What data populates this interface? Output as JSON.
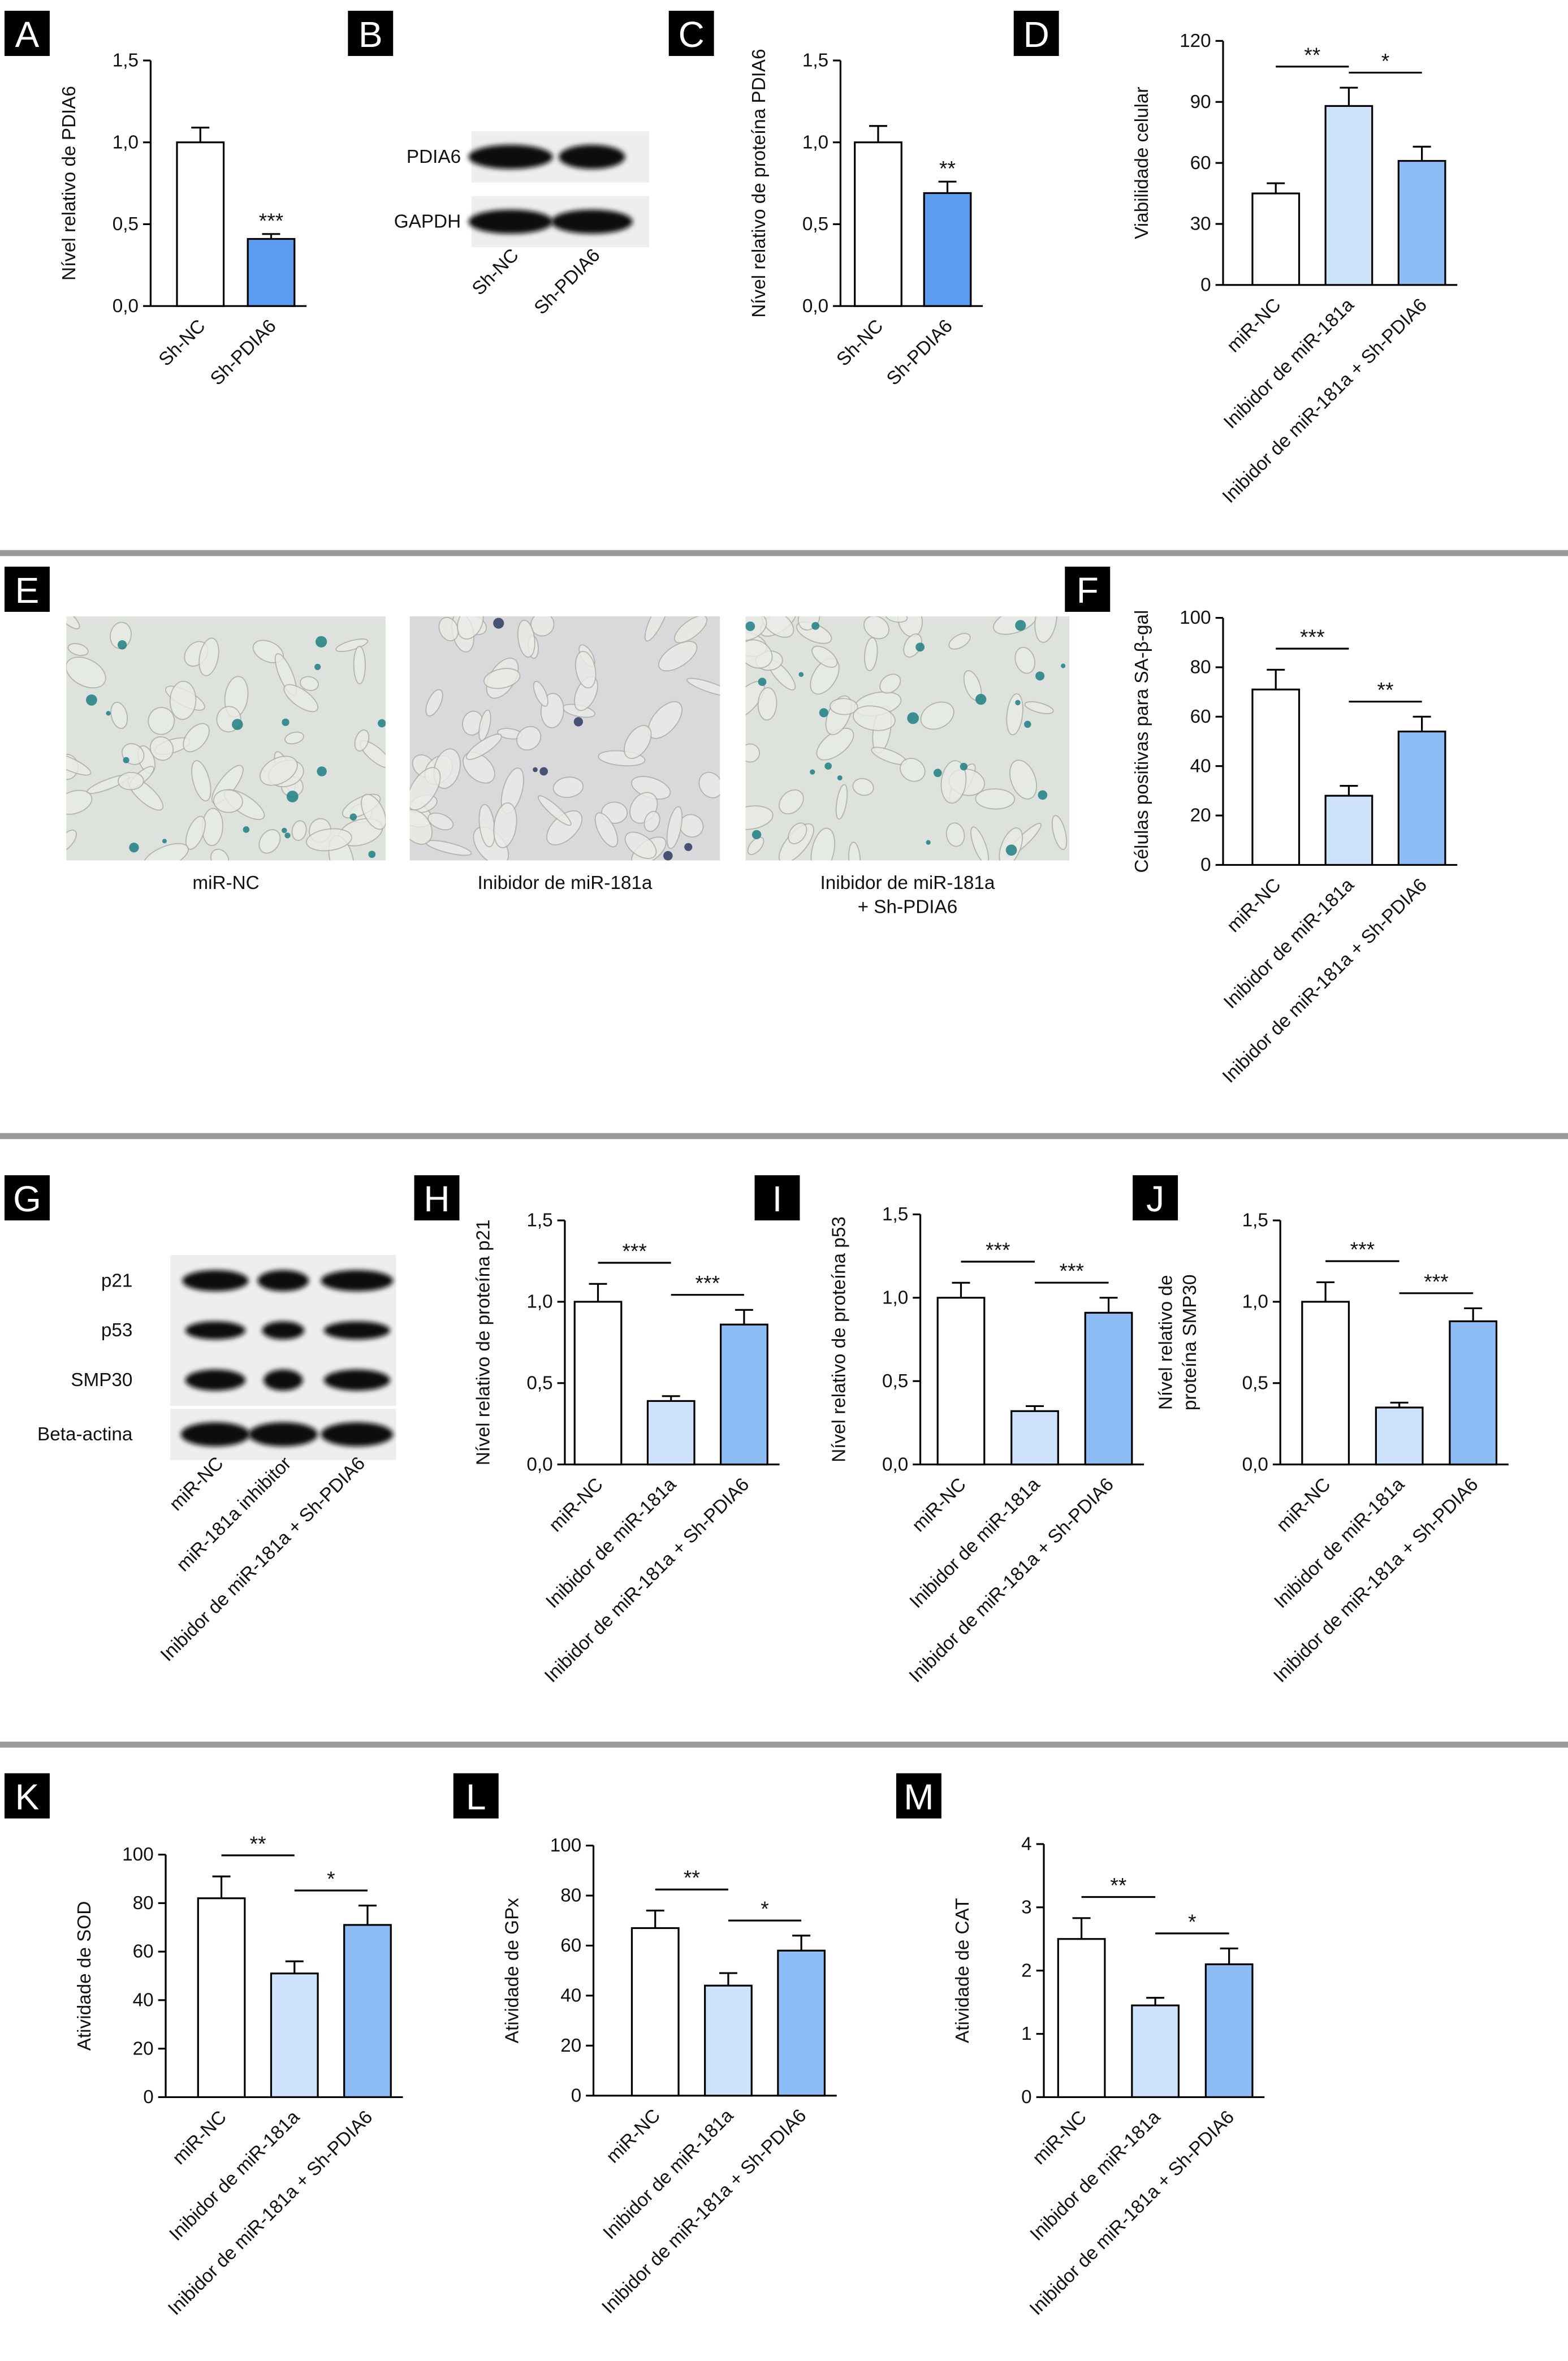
{
  "panel_labels": [
    "A",
    "B",
    "C",
    "D",
    "E",
    "F",
    "G",
    "H",
    "I",
    "J",
    "K",
    "L",
    "M"
  ],
  "blots": [
    {
      "rows": [
        "PDIA6",
        "GAPDH"
      ],
      "lanes": [
        "Sh-NC",
        "Sh-PDIA6"
      ]
    },
    {
      "rows": [
        "p21",
        "p53",
        "SMP30",
        "Beta-actina"
      ],
      "lanes": [
        "miR-NC",
        "miR-181a inhibitor",
        "Inibidor de miR-181a + Sh-PDIA6"
      ]
    }
  ],
  "images": {
    "captions": [
      [
        "miR-NC"
      ],
      [
        "Inibidor de miR-181a"
      ],
      [
        "Inibidor de miR-181a",
        "+ Sh-PDIA6"
      ]
    ]
  },
  "chart_data": [
    {
      "type": "bar",
      "y_label": "Nível relativo de PDIA6",
      "categories": [
        "Sh-NC",
        "Sh-PDIA6"
      ],
      "values": [
        1.0,
        0.41
      ],
      "errors": [
        0.09,
        0.03
      ],
      "colors": [
        "#ffffff",
        "#5b9cf0"
      ],
      "ylim": [
        0,
        1.5
      ],
      "yticks": [
        {
          "value": 0,
          "label": "0,0"
        },
        {
          "value": 0.5,
          "label": "0,5"
        },
        {
          "value": 1,
          "label": "1,0"
        },
        {
          "value": 1.5,
          "label": "1,5"
        }
      ],
      "significance": [
        {
          "label": "***",
          "over": 1
        }
      ]
    },
    {
      "type": "bar",
      "y_label": "Nível relativo de proteína PDIA6",
      "categories": [
        "Sh-NC",
        "Sh-PDIA6"
      ],
      "values": [
        1.0,
        0.69
      ],
      "errors": [
        0.1,
        0.07
      ],
      "colors": [
        "#ffffff",
        "#5b9cf0"
      ],
      "ylim": [
        0,
        1.5
      ],
      "yticks": [
        {
          "value": 0,
          "label": "0,0"
        },
        {
          "value": 0.5,
          "label": "0,5"
        },
        {
          "value": 1,
          "label": "1,0"
        },
        {
          "value": 1.5,
          "label": "1,5"
        }
      ],
      "significance": [
        {
          "label": "**",
          "over": 1
        }
      ]
    },
    {
      "type": "bar",
      "y_label": "Viabilidade celular",
      "categories": [
        "miR-NC",
        "Inibidor de miR-181a",
        "Inibidor de miR-181a + Sh-PDIA6"
      ],
      "values": [
        45,
        88,
        61
      ],
      "errors": [
        5,
        9,
        7
      ],
      "colors": [
        "#ffffff",
        "#cfe2fb",
        "#8ebcf5"
      ],
      "ylim": [
        0,
        120
      ],
      "yticks": [
        0,
        30,
        60,
        90,
        120
      ],
      "significance": [
        {
          "label": "**",
          "between": [
            0,
            1
          ]
        },
        {
          "label": "*",
          "between": [
            1,
            2
          ]
        }
      ]
    },
    {
      "type": "bar",
      "y_label": "Células positivas para SA-β-gal",
      "categories": [
        "miR-NC",
        "Inibidor de miR-181a",
        "Inibidor de miR-181a + Sh-PDIA6"
      ],
      "values": [
        71,
        28,
        54
      ],
      "errors": [
        8,
        4,
        6
      ],
      "colors": [
        "#ffffff",
        "#cfe2fb",
        "#8ebcf5"
      ],
      "ylim": [
        0,
        100
      ],
      "yticks": [
        0,
        20,
        40,
        60,
        80,
        100
      ],
      "significance": [
        {
          "label": "***",
          "between": [
            0,
            1
          ]
        },
        {
          "label": "**",
          "between": [
            1,
            2
          ]
        }
      ]
    },
    {
      "type": "bar",
      "y_label": "Nível relativo de proteína p21",
      "categories": [
        "miR-NC",
        "Inibidor de miR-181a",
        "Inibidor de miR-181a + Sh-PDIA6"
      ],
      "values": [
        1.0,
        0.39,
        0.86
      ],
      "errors": [
        0.11,
        0.03,
        0.09
      ],
      "colors": [
        "#ffffff",
        "#cfe2fb",
        "#8ebcf5"
      ],
      "ylim": [
        0,
        1.5
      ],
      "yticks": [
        {
          "value": 0,
          "label": "0,0"
        },
        {
          "value": 0.5,
          "label": "0,5"
        },
        {
          "value": 1,
          "label": "1,0"
        },
        {
          "value": 1.5,
          "label": "1,5"
        }
      ],
      "significance": [
        {
          "label": "***",
          "between": [
            0,
            1
          ]
        },
        {
          "label": "***",
          "between": [
            1,
            2
          ]
        }
      ]
    },
    {
      "type": "bar",
      "y_label": "Nível relativo de proteína p53",
      "categories": [
        "miR-NC",
        "Inibidor de miR-181a",
        "Inibidor de miR-181a + Sh-PDIA6"
      ],
      "values": [
        1.0,
        0.32,
        0.91
      ],
      "errors": [
        0.09,
        0.03,
        0.09
      ],
      "colors": [
        "#ffffff",
        "#cfe2fb",
        "#8ebcf5"
      ],
      "ylim": [
        0,
        1.5
      ],
      "yticks": [
        {
          "value": 0,
          "label": "0,0"
        },
        {
          "value": 0.5,
          "label": "0,5"
        },
        {
          "value": 1,
          "label": "1,0"
        },
        {
          "value": 1.5,
          "label": "1,5"
        }
      ],
      "significance": [
        {
          "label": "***",
          "between": [
            0,
            1
          ]
        },
        {
          "label": "***",
          "between": [
            1,
            2
          ]
        }
      ]
    },
    {
      "type": "bar",
      "y_label": [
        "Nível relativo de",
        "proteína SMP30"
      ],
      "categories": [
        "miR-NC",
        "Inibidor de miR-181a",
        "Inibidor de miR-181a + Sh-PDIA6"
      ],
      "values": [
        1.0,
        0.35,
        0.88
      ],
      "errors": [
        0.12,
        0.03,
        0.08
      ],
      "colors": [
        "#ffffff",
        "#cfe2fb",
        "#8ebcf5"
      ],
      "ylim": [
        0,
        1.5
      ],
      "yticks": [
        {
          "value": 0,
          "label": "0,0"
        },
        {
          "value": 0.5,
          "label": "0,5"
        },
        {
          "value": 1,
          "label": "1,0"
        },
        {
          "value": 1.5,
          "label": "1,5"
        }
      ],
      "significance": [
        {
          "label": "***",
          "between": [
            0,
            1
          ]
        },
        {
          "label": "***",
          "between": [
            1,
            2
          ]
        }
      ]
    },
    {
      "type": "bar",
      "y_label": "Atividade de SOD",
      "categories": [
        "miR-NC",
        "Inibidor de miR-181a",
        "Inibidor de miR-181a + Sh-PDIA6"
      ],
      "values": [
        82,
        51,
        71
      ],
      "errors": [
        9,
        5,
        8
      ],
      "colors": [
        "#ffffff",
        "#cfe2fb",
        "#8ebcf5"
      ],
      "ylim": [
        0,
        100
      ],
      "yticks": [
        0,
        20,
        40,
        60,
        80,
        100
      ],
      "significance": [
        {
          "label": "**",
          "between": [
            0,
            1
          ]
        },
        {
          "label": "*",
          "between": [
            1,
            2
          ]
        }
      ]
    },
    {
      "type": "bar",
      "y_label": "Atividade de GPx",
      "categories": [
        "miR-NC",
        "Inibidor de miR-181a",
        "Inibidor de miR-181a + Sh-PDIA6"
      ],
      "values": [
        67,
        44,
        58
      ],
      "errors": [
        7,
        5,
        6
      ],
      "colors": [
        "#ffffff",
        "#cfe2fb",
        "#8ebcf5"
      ],
      "ylim": [
        0,
        100
      ],
      "yticks": [
        0,
        20,
        40,
        60,
        80,
        100
      ],
      "significance": [
        {
          "label": "**",
          "between": [
            0,
            1
          ]
        },
        {
          "label": "*",
          "between": [
            1,
            2
          ]
        }
      ]
    },
    {
      "type": "bar",
      "y_label": "Atividade de CAT",
      "categories": [
        "miR-NC",
        "Inibidor de miR-181a",
        "Inibidor de miR-181a + Sh-PDIA6"
      ],
      "values": [
        2.5,
        1.45,
        2.1
      ],
      "errors": [
        0.33,
        0.12,
        0.25
      ],
      "colors": [
        "#ffffff",
        "#cfe2fb",
        "#8ebcf5"
      ],
      "ylim": [
        0,
        4
      ],
      "yticks": [
        0,
        1,
        2,
        3,
        4
      ],
      "significance": [
        {
          "label": "**",
          "between": [
            0,
            1
          ]
        },
        {
          "label": "*",
          "between": [
            1,
            2
          ]
        }
      ]
    }
  ]
}
